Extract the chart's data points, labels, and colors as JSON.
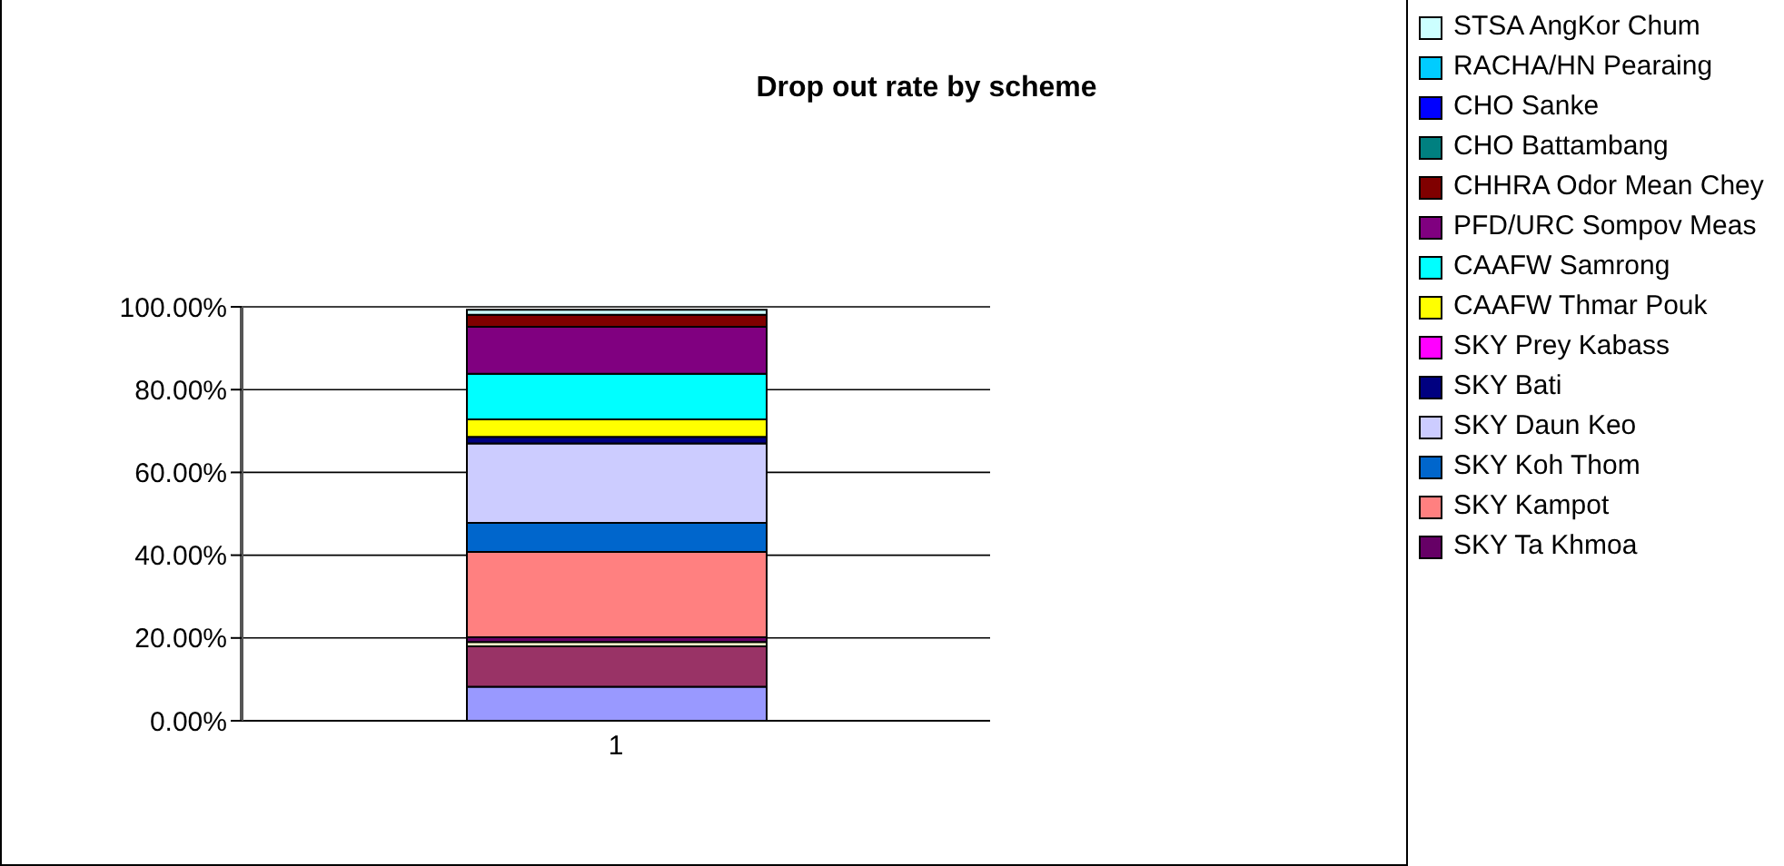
{
  "chart_data": {
    "type": "bar",
    "title": "Drop out rate by scheme",
    "categories": [
      "1"
    ],
    "stacked": true,
    "ylim": [
      0,
      100
    ],
    "yticks": [
      {
        "value": 0,
        "label": "0.00%"
      },
      {
        "value": 20,
        "label": "20.00%"
      },
      {
        "value": 40,
        "label": "40.00%"
      },
      {
        "value": 60,
        "label": "60.00%"
      },
      {
        "value": 80,
        "label": "80.00%"
      },
      {
        "value": 100,
        "label": "100.00%"
      }
    ],
    "grid": "y",
    "legend": "right",
    "series": [
      {
        "color": "#9999ff",
        "values": [
          8.2
        ]
      },
      {
        "color": "#993366",
        "values": [
          9.8
        ]
      },
      {
        "color": "#ffffcc",
        "values": [
          1.0
        ]
      },
      {
        "name": "SKY Ta Khmoa",
        "color": "#660066",
        "values": [
          1.2
        ]
      },
      {
        "name": "SKY Kampot",
        "color": "#ff8080",
        "values": [
          20.6
        ]
      },
      {
        "name": "SKY Koh Thom",
        "color": "#0066cc",
        "values": [
          7.0
        ]
      },
      {
        "name": "SKY Daun Keo",
        "color": "#ccccff",
        "values": [
          19.2
        ]
      },
      {
        "name": "SKY Bati",
        "color": "#000080",
        "values": [
          1.6
        ]
      },
      {
        "name": "SKY Prey Kabass",
        "color": "#ff00ff",
        "values": [
          0
        ]
      },
      {
        "name": "CAAFW Thmar Pouk",
        "color": "#ffff00",
        "values": [
          4.2
        ]
      },
      {
        "name": "CAAFW Samrong",
        "color": "#00ffff",
        "values": [
          11.0
        ]
      },
      {
        "name": "PFD/URC Sompov Meas",
        "color": "#800080",
        "values": [
          11.4
        ]
      },
      {
        "name": "CHHRA Odor Mean Chey",
        "color": "#800000",
        "values": [
          2.9
        ]
      },
      {
        "name": "CHO Battambang",
        "color": "#008080",
        "values": [
          0
        ]
      },
      {
        "name": "CHO Sanke",
        "color": "#0000ff",
        "values": [
          0
        ]
      },
      {
        "name": "RACHA/HN Pearaing",
        "color": "#00ccff",
        "values": [
          0
        ]
      },
      {
        "name": "STSA AngKor Chum",
        "color": "#ccffff",
        "values": [
          1.2
        ]
      }
    ]
  }
}
